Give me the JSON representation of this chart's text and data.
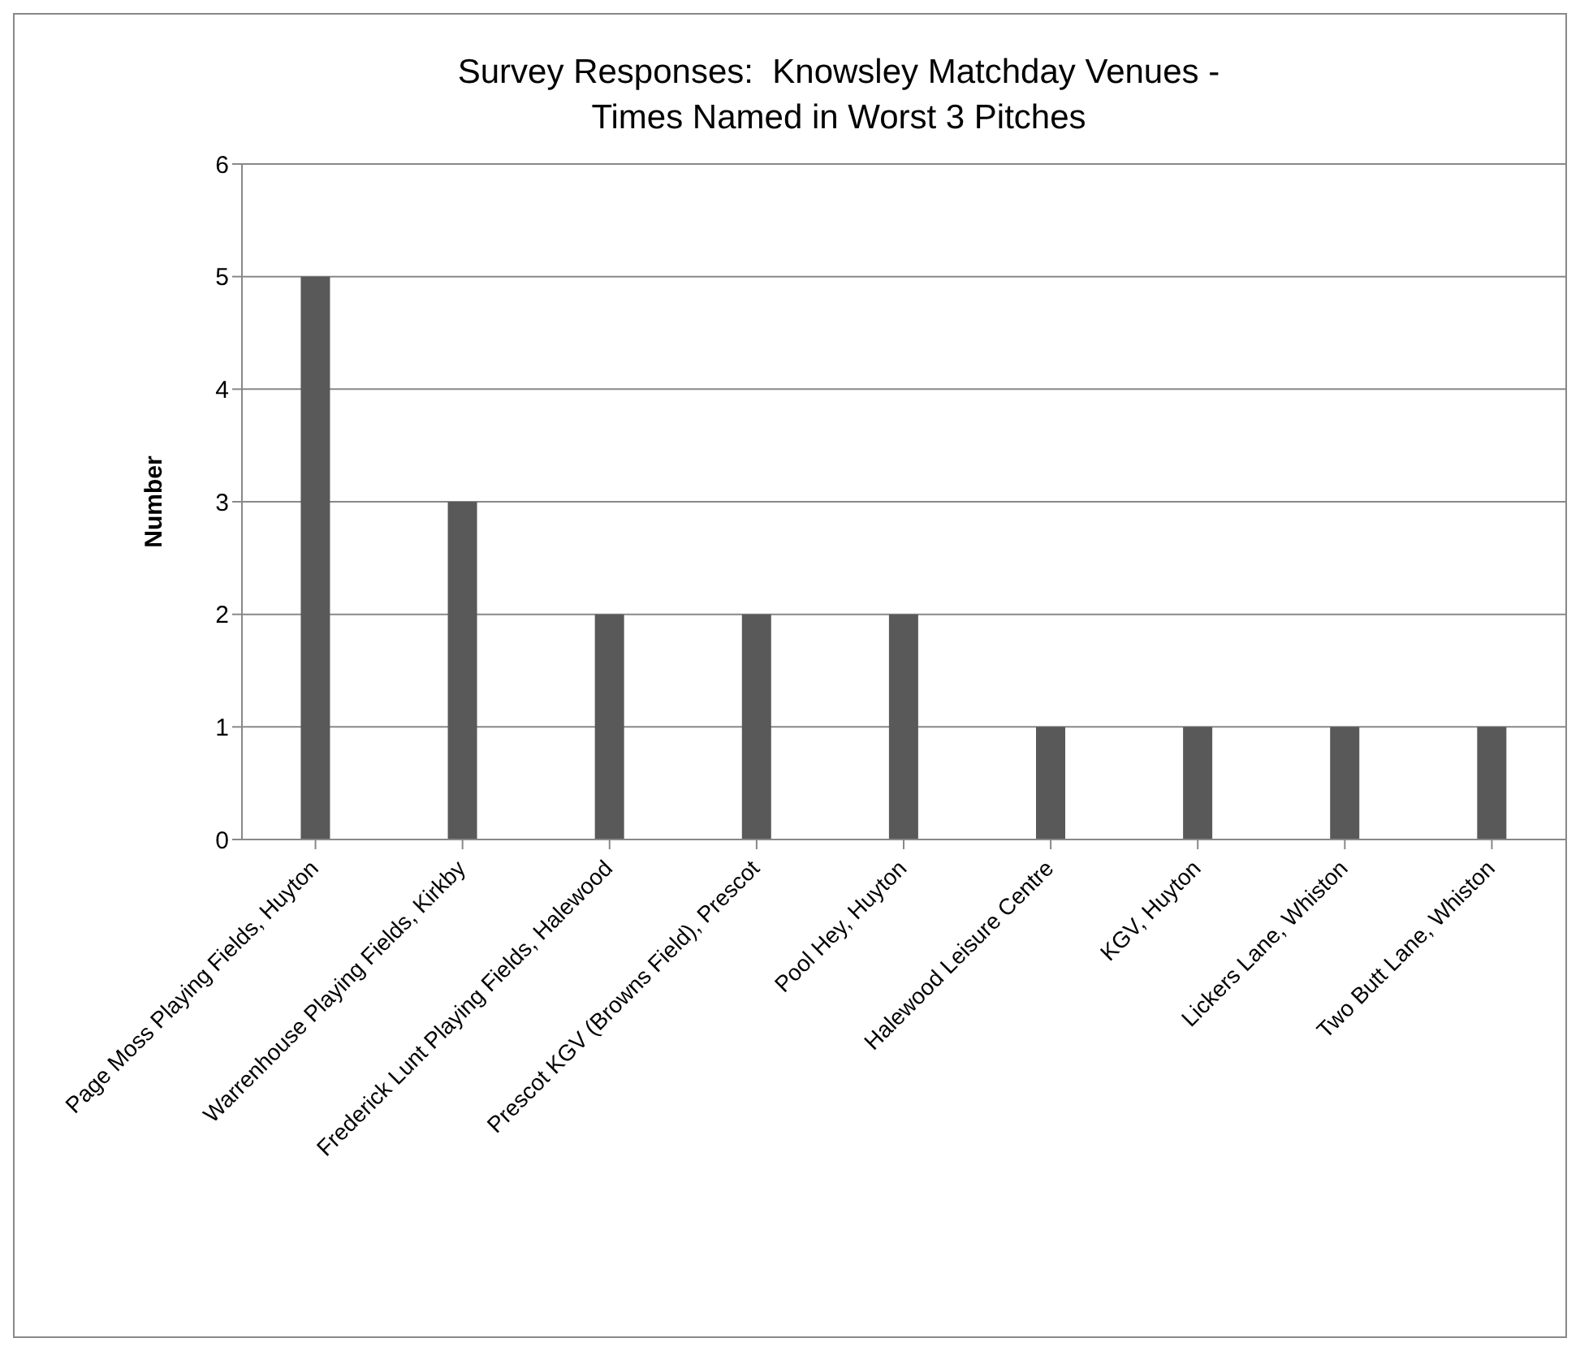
{
  "chart_data": {
    "type": "bar",
    "title": "Survey Responses:  Knowsley Matchday Venues -\nTimes Named in Worst 3 Pitches",
    "ylabel": "Number",
    "categories": [
      "Page Moss Playing Fields, Huyton",
      "Warrenhouse Playing Fields, Kirkby",
      "Frederick Lunt Playing Fields, Halewood",
      "Prescot KGV (Browns Field), Prescot",
      "Pool Hey, Huyton",
      "Halewood Leisure Centre",
      "KGV, Huyton",
      "Lickers Lane, Whiston",
      "Two Butt Lane, Whiston"
    ],
    "values": [
      5,
      3,
      2,
      2,
      2,
      1,
      1,
      1,
      1
    ],
    "color": "#595959",
    "ylim": [
      0,
      6
    ],
    "yticks": [
      0,
      1,
      2,
      3,
      4,
      5,
      6
    ],
    "grid": "y",
    "legend": false
  }
}
